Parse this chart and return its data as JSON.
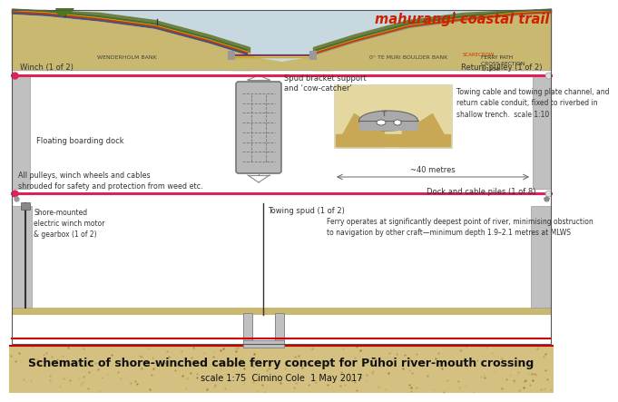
{
  "title": "Schematic of shore-winched cable ferry concept for Pūhoi river-mouth crossing",
  "subtitle": "scale 1:75  Cimino Cole  1 May 2017",
  "brand": "mahurangi coastal trail",
  "bg": "#ffffff",
  "footer_bg": "#d4c080",
  "brand_color": "#cc2200",
  "cable_color_pink": "#dd2255",
  "gray_dark": "#888888",
  "gray_med": "#aaaaaa",
  "gray_light": "#cccccc",
  "ferry_fill": "#b8b8b8",
  "dock_fill": "#c0c0c0",
  "annotations": {
    "winch": "Winch (1 of 2)",
    "return_pulley": "Return pulley (1 of 2)",
    "spud_bracket": "Spud bracket support\nand ‘cow-catcher’",
    "floating_dock": "Floating boarding dock",
    "towing_cable": "Towing cable and towing plate channel, and\nreturn cable conduit, fixed to riverbed in\nshallow trench.  scale 1:10",
    "forty_metres": "~40 metres",
    "pulleys_note": "All pulleys, winch wheels and cables\nshrouded for safety and protection from weed etc.",
    "dock_piles": "Dock and cable piles (1 of 8)",
    "shore_motor": "Shore-mounted\nelectric winch motor\n& gearbox (1 of 2)",
    "towing_spud": "Towing spud (1 of 2)",
    "ferry_note": "Ferry operates at significantly deepest point of river, minimising obstruction\nto navigation by other craft—minimum depth 1.9–2.1 metres at MLWS",
    "wenderholm": "WENDERHOLM BANK",
    "boulder_bank": "0° TE MURI BOULDER BANK",
    "ferry_path": "FERRY PATH\nCROSS SECTION\n1:1250",
    "scarecrow": "SCARECROW"
  },
  "xs_bg": "#e8e4d0",
  "xs_sky": "#c8d8e0",
  "xs_ground_tan": "#c8b870",
  "xs_ground_green": "#708040",
  "xs_ground_dark": "#a89050",
  "xs_road_gray": "#909090",
  "xs_road_light": "#b0b0b0",
  "xs_cable_red": "#cc3333",
  "xs_cable_yellow": "#ccaa00",
  "xs_cable_green": "#336633",
  "xs_cable_blue": "#334488",
  "inset_bg": "#e4d8a0",
  "inset_sand": "#c8a855",
  "inset_plate": "#aaaaaa",
  "bottom_ground": "#c8b870"
}
